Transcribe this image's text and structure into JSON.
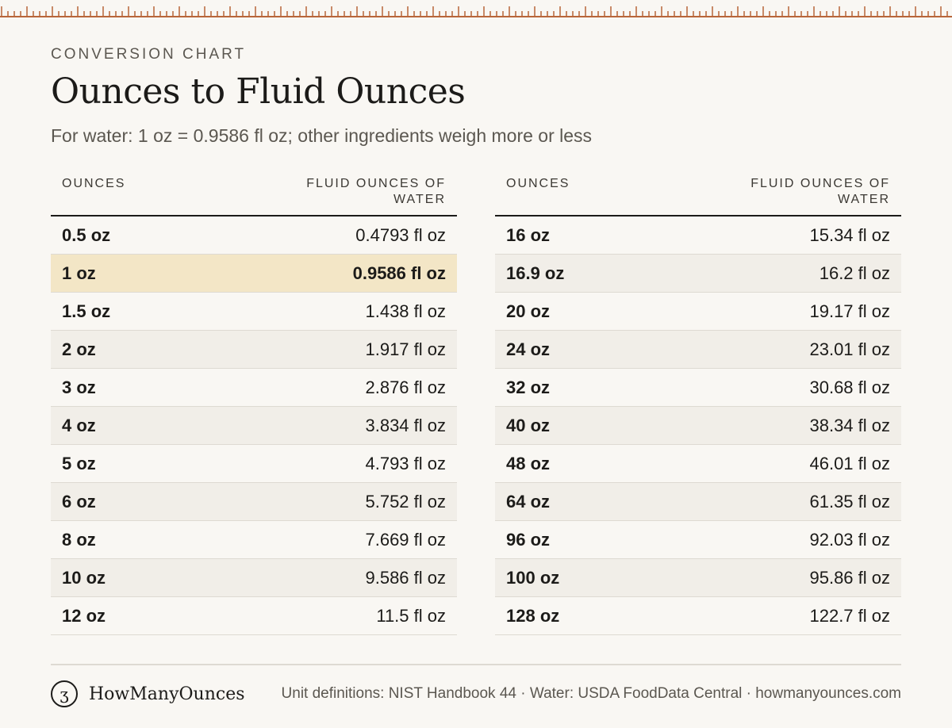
{
  "header": {
    "kicker": "CONVERSION CHART",
    "title": "Ounces to Fluid Ounces",
    "subtitle": "For water: 1 oz = 0.9586 fl oz; other ingredients weigh more or less"
  },
  "columns": {
    "ounces": "OUNCES",
    "fluid_line1": "FLUID OUNCES OF",
    "fluid_line2": "WATER"
  },
  "left_rows": [
    {
      "oz": "0.5 oz",
      "val": "0.4793 fl oz"
    },
    {
      "oz": "1 oz",
      "val": "0.9586 fl oz"
    },
    {
      "oz": "1.5 oz",
      "val": "1.438 fl oz"
    },
    {
      "oz": "2 oz",
      "val": "1.917 fl oz"
    },
    {
      "oz": "3 oz",
      "val": "2.876 fl oz"
    },
    {
      "oz": "4 oz",
      "val": "3.834 fl oz"
    },
    {
      "oz": "5 oz",
      "val": "4.793 fl oz"
    },
    {
      "oz": "6 oz",
      "val": "5.752 fl oz"
    },
    {
      "oz": "8 oz",
      "val": "7.669 fl oz"
    },
    {
      "oz": "10 oz",
      "val": "9.586 fl oz"
    },
    {
      "oz": "12 oz",
      "val": "11.5 fl oz"
    }
  ],
  "right_rows": [
    {
      "oz": "16 oz",
      "val": "15.34 fl oz"
    },
    {
      "oz": "16.9 oz",
      "val": "16.2 fl oz"
    },
    {
      "oz": "20 oz",
      "val": "19.17 fl oz"
    },
    {
      "oz": "24 oz",
      "val": "23.01 fl oz"
    },
    {
      "oz": "32 oz",
      "val": "30.68 fl oz"
    },
    {
      "oz": "40 oz",
      "val": "38.34 fl oz"
    },
    {
      "oz": "48 oz",
      "val": "46.01 fl oz"
    },
    {
      "oz": "64 oz",
      "val": "61.35 fl oz"
    },
    {
      "oz": "96 oz",
      "val": "92.03 fl oz"
    },
    {
      "oz": "100 oz",
      "val": "95.86 fl oz"
    },
    {
      "oz": "128 oz",
      "val": "122.7 fl oz"
    }
  ],
  "highlight_row": "1 oz",
  "footer": {
    "brand_glyph": "ʒ",
    "brand_name": "HowManyOunces",
    "sources": "Unit definitions: NIST Handbook 44 · Water: USDA FoodData Central · howmanyounces.com"
  },
  "colors": {
    "background": "#f9f7f3",
    "accent": "#b8663a",
    "highlight": "#f3e6c6",
    "alt_row": "#f1eee8"
  }
}
